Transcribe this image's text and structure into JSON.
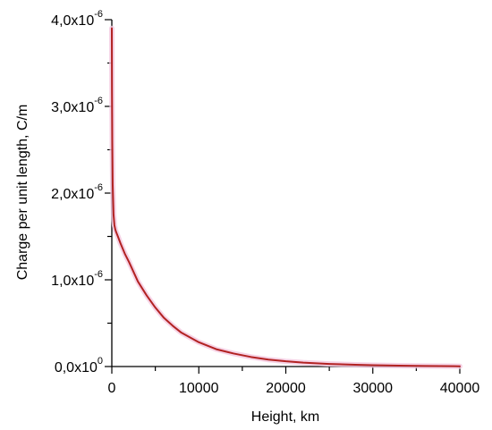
{
  "chart_data": {
    "type": "line",
    "title": "",
    "xlabel": "Height, km",
    "ylabel": "Charge per unit length, C/m",
    "xlim": [
      0,
      40000
    ],
    "ylim": [
      0,
      4e-06
    ],
    "x_ticks": [
      {
        "value": 0,
        "label": "0"
      },
      {
        "value": 10000,
        "label": "10000"
      },
      {
        "value": 20000,
        "label": "20000"
      },
      {
        "value": 30000,
        "label": "30000"
      },
      {
        "value": 40000,
        "label": "40000"
      }
    ],
    "y_ticks": [
      {
        "value": 0,
        "mantissa": "0,0x10",
        "exp": "0"
      },
      {
        "value": 1e-06,
        "mantissa": "1,0x10",
        "exp": "-6"
      },
      {
        "value": 2e-06,
        "mantissa": "2,0x10",
        "exp": "-6"
      },
      {
        "value": 3e-06,
        "mantissa": "3,0x10",
        "exp": "-6"
      },
      {
        "value": 4e-06,
        "mantissa": "4,0x10",
        "exp": "-6"
      }
    ],
    "grid": false,
    "legend": "none",
    "series": [
      {
        "color": "#b22222",
        "halo_color": "#f4c8e0",
        "x": [
          0,
          20,
          50,
          100,
          200,
          300,
          400,
          500,
          700,
          1000,
          1500,
          2000,
          3000,
          4000,
          5000,
          6000,
          7000,
          8000,
          10000,
          12000,
          14000,
          16000,
          18000,
          20000,
          22000,
          25000,
          28000,
          30000,
          33000,
          36000,
          40000
        ],
        "y": [
          3.9e-06,
          3.2e-06,
          2.6e-06,
          2.1e-06,
          1.75e-06,
          1.63e-06,
          1.58e-06,
          1.55e-06,
          1.5e-06,
          1.42e-06,
          1.3e-06,
          1.2e-06,
          9.8e-07,
          8.2e-07,
          6.8e-07,
          5.6e-07,
          4.7e-07,
          3.9e-07,
          2.8e-07,
          2e-07,
          1.5e-07,
          1.1e-07,
          8e-08,
          6e-08,
          4.5e-08,
          3e-08,
          2e-08,
          1.5e-08,
          1e-08,
          6e-09,
          3e-09
        ]
      }
    ]
  }
}
